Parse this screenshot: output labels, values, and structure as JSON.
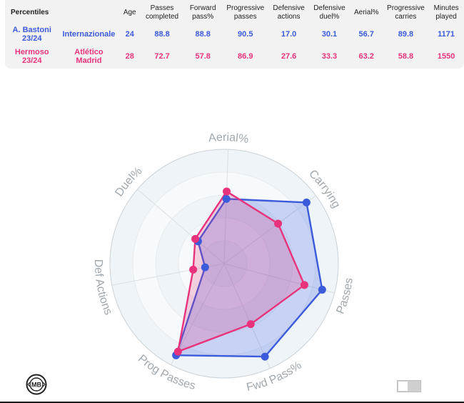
{
  "table": {
    "columns": [
      "Percentiles",
      "",
      "Age",
      "Passes\ncompleted",
      "Forward\npass%",
      "Progressive\npasses",
      "Defensive\nactions",
      "Defensive\nduel%",
      "Aerial%",
      "Progressive\ncarries",
      "Minutes\nplayed"
    ],
    "rows": [
      {
        "player": "A. Bastoni\n23/24",
        "club": "Internazionale",
        "age": "24",
        "passes_completed": "88.8",
        "forward_pass": "88.8",
        "progressive_passes": "90.5",
        "defensive_actions": "17.0",
        "defensive_duel": "30.1",
        "aerial": "56.7",
        "progressive_carries": "89.8",
        "minutes": "1171",
        "color": "#3b5bdb"
      },
      {
        "player": "Hermoso\n23/24",
        "club": "Atlético\nMadrid",
        "age": "28",
        "passes_completed": "72.7",
        "forward_pass": "57.8",
        "progressive_passes": "86.9",
        "defensive_actions": "27.6",
        "defensive_duel": "33.3",
        "aerial": "63.2",
        "progressive_carries": "58.8",
        "minutes": "1550",
        "color": "#e8337c"
      }
    ]
  },
  "chart_data": {
    "type": "radar",
    "axes": [
      "Aerial%",
      "Carrying",
      "Passes",
      "Fwd Pass%",
      "Prog Passes",
      "Def Actions",
      "Duel%"
    ],
    "range": [
      0,
      100
    ],
    "rings": 5,
    "series": [
      {
        "name": "A. Bastoni 23/24",
        "color": "#3b5bdb",
        "values": [
          56.7,
          89.8,
          88.8,
          88.8,
          90.5,
          17.0,
          30.1
        ]
      },
      {
        "name": "Hermoso 23/24",
        "color": "#e8337c",
        "values": [
          63.2,
          58.8,
          72.7,
          57.8,
          86.9,
          27.6,
          33.3
        ]
      }
    ]
  },
  "footer": {
    "logo_text": "MB",
    "toggle_state": "off"
  }
}
